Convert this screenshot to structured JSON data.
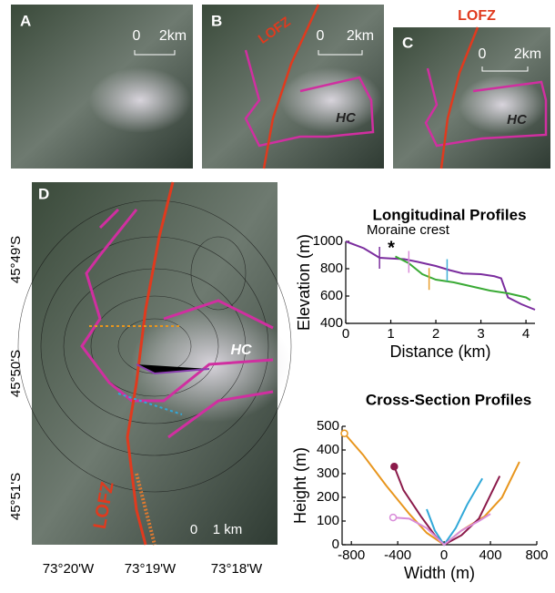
{
  "panels": [
    {
      "label": "A",
      "scale_start": "0",
      "scale_end": "2km"
    },
    {
      "label": "B",
      "fault": "LOFZ",
      "glacier": "HC",
      "scale_start": "0",
      "scale_end": "2km"
    },
    {
      "label": "C",
      "fault": "LOFZ",
      "glacier": "HC",
      "scale_start": "0",
      "scale_end": "2km"
    },
    {
      "label": "D",
      "fault": "LOFZ",
      "glacier": "HC",
      "scale_start": "0",
      "scale_end": "1 km",
      "latitudes": [
        "45°49'S",
        "45°50'S",
        "45°51'S"
      ],
      "longitudes": [
        "73°20'W",
        "73°19'W",
        "73°18'W"
      ]
    }
  ],
  "chart_data": [
    {
      "type": "line",
      "title": "Longitudinal Profiles",
      "x_label": "Distance (km)",
      "y_label": "Elevation (m)",
      "annotation": "Moraine crest",
      "annotation_symbol": "*",
      "xlim": [
        0,
        4.2
      ],
      "ylim": [
        400,
        1000
      ],
      "xticks": [
        0,
        1,
        2,
        3,
        4
      ],
      "yticks": [
        400,
        600,
        800,
        1000
      ],
      "series": [
        {
          "color": "#7b2d9e",
          "x": [
            0,
            0.4,
            0.75,
            1.0,
            1.3,
            1.6,
            2.0,
            2.3,
            2.6,
            3.0,
            3.3,
            3.45,
            3.6,
            3.9,
            4.2
          ],
          "values": [
            1000,
            950,
            880,
            875,
            870,
            850,
            820,
            790,
            765,
            760,
            745,
            730,
            590,
            540,
            500
          ]
        },
        {
          "color": "#3aaa35",
          "x": [
            1.1,
            1.4,
            1.7,
            2.0,
            2.4,
            2.8,
            3.2,
            3.6,
            4.0,
            4.1
          ],
          "values": [
            890,
            840,
            760,
            720,
            700,
            670,
            640,
            620,
            590,
            570
          ]
        }
      ],
      "markers": {
        "x": [
          0.75,
          1.4,
          1.85,
          2.25
        ],
        "values": [
          880,
          850,
          725,
          790
        ],
        "colors": [
          "#7b2d9e",
          "#d98cd9",
          "#e8a030",
          "#40b0d8"
        ]
      }
    },
    {
      "type": "line",
      "title": "Cross-Section Profiles",
      "x_label": "Width (m)",
      "y_label": "Height (m)",
      "xlim": [
        -880,
        800
      ],
      "ylim": [
        0,
        500
      ],
      "xticks": [
        -800,
        -400,
        0,
        400,
        800
      ],
      "yticks": [
        0,
        100,
        200,
        300,
        400,
        500
      ],
      "series": [
        {
          "color": "#e8961e",
          "x": [
            -860,
            -700,
            -500,
            -300,
            -150,
            0,
            150,
            350,
            500,
            650
          ],
          "values": [
            470,
            380,
            250,
            130,
            50,
            0,
            60,
            120,
            200,
            350
          ]
        },
        {
          "color": "#8b1a4a",
          "x": [
            -430,
            -350,
            -200,
            -80,
            0,
            150,
            300,
            480
          ],
          "values": [
            330,
            230,
            120,
            40,
            0,
            40,
            110,
            290
          ]
        },
        {
          "color": "#30a8d8",
          "x": [
            -150,
            -80,
            0,
            100,
            200,
            330
          ],
          "values": [
            150,
            60,
            0,
            70,
            170,
            280
          ]
        },
        {
          "color": "#d98cd9",
          "x": [
            -440,
            -300,
            -150,
            0,
            150,
            300,
            400
          ],
          "values": [
            115,
            110,
            70,
            0,
            60,
            100,
            130
          ]
        }
      ],
      "start_dots": [
        0,
        1,
        3
      ]
    }
  ]
}
